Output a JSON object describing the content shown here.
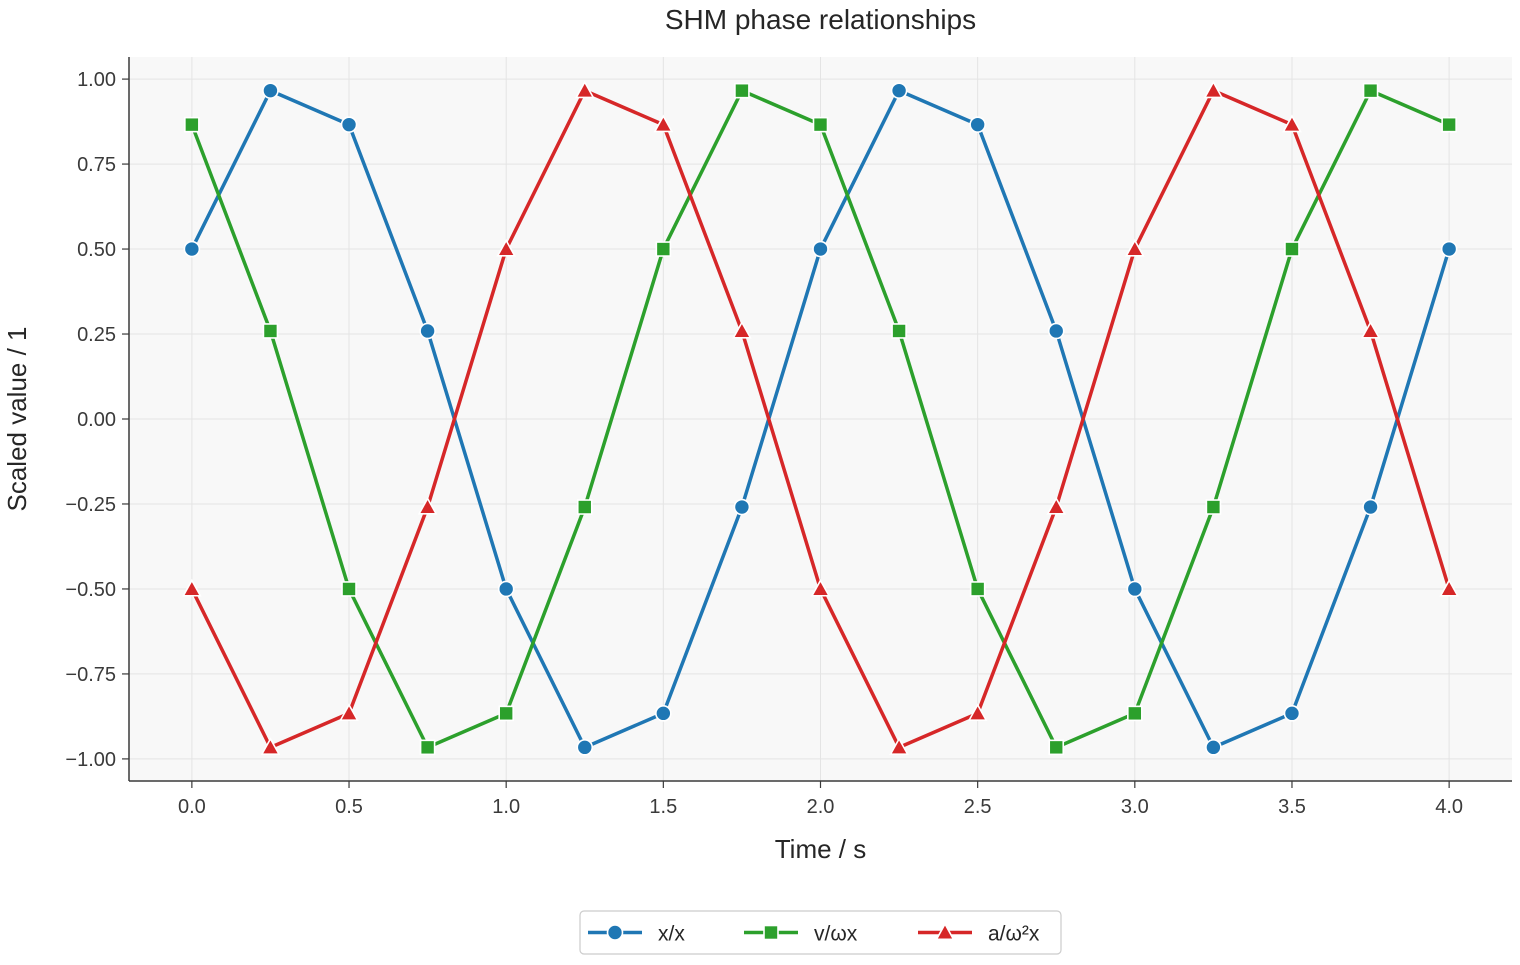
{
  "chart_data": {
    "type": "line",
    "title": "SHM phase relationships",
    "xlabel": "Time / s",
    "ylabel": "Scaled value / 1",
    "xlim": [
      -0.2,
      4.2
    ],
    "ylim": [
      -1.065,
      1.065
    ],
    "xticks": [
      "0.0",
      "0.5",
      "1.0",
      "1.5",
      "2.0",
      "2.5",
      "3.0",
      "3.5",
      "4.0"
    ],
    "xtick_values": [
      0.0,
      0.5,
      1.0,
      1.5,
      2.0,
      2.5,
      3.0,
      3.5,
      4.0
    ],
    "yticks": [
      "1.00",
      "0.75",
      "0.50",
      "0.25",
      "0.00",
      "−0.25",
      "−0.50",
      "−0.75",
      "−1.00"
    ],
    "ytick_values": [
      1.0,
      0.75,
      0.5,
      0.25,
      0.0,
      -0.25,
      -0.5,
      -0.75,
      -1.0
    ],
    "grid": true,
    "legend_position": "bottom-center",
    "x": [
      0.0,
      0.25,
      0.5,
      0.75,
      1.0,
      1.25,
      1.5,
      1.75,
      2.0,
      2.25,
      2.5,
      2.75,
      3.0,
      3.25,
      3.5,
      3.75,
      4.0
    ],
    "series": [
      {
        "name": "x/x",
        "color": "#1f77b4",
        "marker": "circle",
        "values": [
          0.5,
          0.966,
          0.866,
          0.259,
          -0.5,
          -0.966,
          -0.866,
          -0.259,
          0.5,
          0.966,
          0.866,
          0.259,
          -0.5,
          -0.966,
          -0.866,
          -0.259,
          0.5
        ]
      },
      {
        "name": "v/ωx",
        "color": "#2ca02c",
        "marker": "square",
        "values": [
          0.866,
          0.259,
          -0.5,
          -0.966,
          -0.866,
          -0.259,
          0.5,
          0.966,
          0.866,
          0.259,
          -0.5,
          -0.966,
          -0.866,
          -0.259,
          0.5,
          0.966,
          0.866
        ]
      },
      {
        "name": "a/ω²x",
        "color": "#d62728",
        "marker": "triangle",
        "values": [
          -0.5,
          -0.966,
          -0.866,
          -0.259,
          0.5,
          0.966,
          0.866,
          0.259,
          -0.5,
          -0.966,
          -0.866,
          -0.259,
          0.5,
          0.966,
          0.866,
          0.259,
          -0.5
        ]
      }
    ]
  },
  "colors": {
    "plot_background": "#f8f8f8",
    "grid": "#e4e4e4",
    "axis": "#3a3a3a"
  }
}
